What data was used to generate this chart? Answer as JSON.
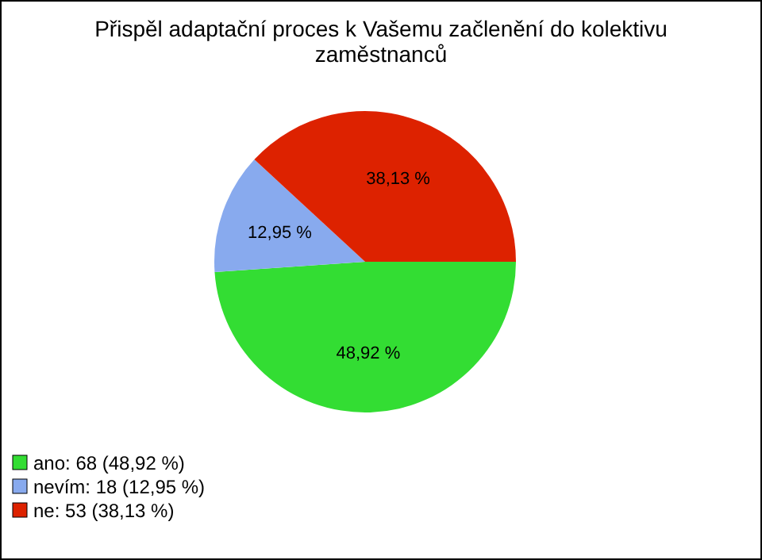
{
  "chart_data": {
    "type": "pie",
    "title": "Přispěl adaptační proces k Vašemu začlenění do kolektivu zaměstnanců",
    "categories": [
      "ano: 68 (48,92 %)",
      "nevím: 18 (12,95 %)",
      "ne: 53 (38,13 %)"
    ],
    "values": [
      48.92,
      12.95,
      38.13
    ],
    "value_labels": [
      "48,92 %",
      "12,95 %",
      "38,13 %"
    ],
    "colors": [
      "#33dd33",
      "#88aaee",
      "#dd2200"
    ],
    "legend": "bottom left"
  }
}
